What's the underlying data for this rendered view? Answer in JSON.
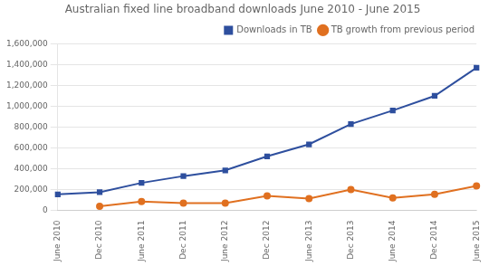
{
  "chart_data": {
    "type": "line",
    "title": "Australian fixed line broadband downloads June 2010 - June 2015",
    "categories": [
      "June 2010",
      "Dec 2010",
      "June 2011",
      "Dec 2011",
      "June 2012",
      "Dec 2012",
      "June 2013",
      "Dec 2013",
      "June 2014",
      "Dec 2014",
      "June 2015"
    ],
    "series": [
      {
        "name": "Downloads in TB",
        "color": "#2E4F9E",
        "marker": "square",
        "values": [
          155000,
          175000,
          265000,
          330000,
          385000,
          520000,
          635000,
          830000,
          960000,
          1100000,
          1370000
        ]
      },
      {
        "name": "TB growth from previous\nperiod",
        "color": "#E07020",
        "marker": "circle",
        "values": [
          null,
          40000,
          85000,
          70000,
          70000,
          140000,
          115000,
          200000,
          120000,
          155000,
          235000
        ]
      }
    ],
    "ylim": [
      0,
      1600000
    ],
    "yticks": [
      0,
      {
        "value": 200000,
        "label": "200,000"
      },
      {
        "value": 400000,
        "label": "400,000"
      },
      {
        "value": 600000,
        "label": "600,000"
      },
      {
        "value": 800000,
        "label": "800,000"
      },
      {
        "value": 1000000,
        "label": "1,000,000"
      },
      {
        "value": 1200000,
        "label": "1,200,000"
      },
      {
        "value": 1400000,
        "label": "1,400,000"
      },
      {
        "value": 1600000,
        "label": "1,600,000"
      }
    ],
    "grid": true,
    "legend": "upper right"
  }
}
